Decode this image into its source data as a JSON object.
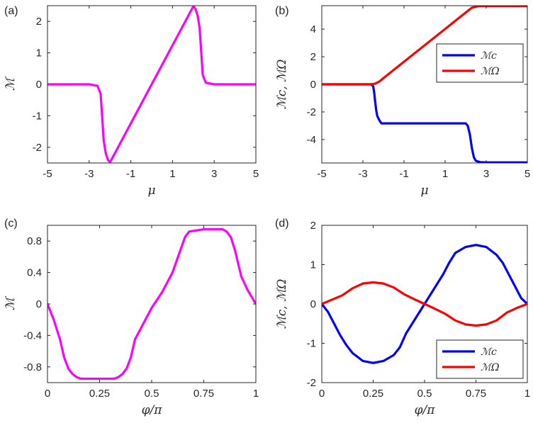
{
  "chart_data": [
    {
      "type": "line",
      "panel_label": "(a)",
      "xlabel": "μ",
      "ylabel": "ℳ",
      "xlim": [
        -5,
        5
      ],
      "ylim": [
        -2.5,
        2.5
      ],
      "xticks": [
        -5,
        -3,
        -1,
        1,
        3,
        5
      ],
      "yticks": [
        -2,
        -1,
        0,
        1,
        2
      ],
      "xtick_labels": [
        "-5",
        "-3",
        "-1",
        "1",
        "3",
        "5"
      ],
      "ytick_labels": [
        "-2",
        "-1",
        "0",
        "1",
        "2"
      ],
      "legend": null,
      "series": [
        {
          "name": "ℳ",
          "color": "#ff00ff",
          "x": [
            -5,
            -3.0,
            -2.6,
            -2.45,
            -2.4,
            -2.35,
            -2.3,
            -2.2,
            -2.1,
            -2.0,
            0.0,
            2.0,
            2.1,
            2.2,
            2.3,
            2.35,
            2.4,
            2.45,
            2.6,
            3.0,
            5
          ],
          "y": [
            0,
            0,
            -0.05,
            -0.3,
            -0.8,
            -1.3,
            -1.8,
            -2.2,
            -2.4,
            -2.48,
            0,
            2.48,
            2.4,
            2.2,
            1.8,
            1.3,
            0.8,
            0.3,
            0.05,
            0,
            0
          ]
        }
      ]
    },
    {
      "type": "line",
      "panel_label": "(b)",
      "xlabel": "μ",
      "ylabel": "ℳc, ℳΩ",
      "xlim": [
        -5,
        5
      ],
      "ylim": [
        -5.7,
        5.7
      ],
      "xticks": [
        -5,
        -3,
        -1,
        1,
        3,
        5
      ],
      "yticks": [
        -4,
        -2,
        0,
        2,
        4
      ],
      "xtick_labels": [
        "-5",
        "-3",
        "-1",
        "1",
        "3",
        "5"
      ],
      "ytick_labels": [
        "-4",
        "-2",
        "0",
        "2",
        "4"
      ],
      "legend": {
        "position": "right",
        "entries": [
          "ℳc",
          "ℳΩ"
        ]
      },
      "series": [
        {
          "name": "ℳc",
          "color": "#0000ff",
          "x": [
            -5,
            -2.6,
            -2.5,
            -2.45,
            -2.4,
            -2.35,
            -2.3,
            -2.2,
            -2.1,
            2.0,
            2.1,
            2.2,
            2.3,
            2.4,
            2.5,
            2.7,
            3.0,
            5
          ],
          "y": [
            0,
            0,
            -0.15,
            -0.6,
            -1.3,
            -1.9,
            -2.3,
            -2.6,
            -2.83,
            -2.83,
            -3.0,
            -3.6,
            -4.6,
            -5.3,
            -5.55,
            -5.64,
            -5.66,
            -5.66
          ]
        },
        {
          "name": "ℳΩ",
          "color": "#ff0000",
          "x": [
            -5,
            -2.6,
            -2.4,
            -2.2,
            -2.0,
            2.0,
            2.3,
            2.6,
            3.0,
            5
          ],
          "y": [
            0,
            0,
            0.05,
            0.2,
            0.45,
            5.2,
            5.55,
            5.66,
            5.66,
            5.66
          ]
        }
      ]
    },
    {
      "type": "line",
      "panel_label": "(c)",
      "xlabel": "φ/π",
      "ylabel": "ℳ",
      "xlim": [
        0,
        1
      ],
      "ylim": [
        -1.0,
        1.0
      ],
      "xticks": [
        0,
        0.25,
        0.5,
        0.75,
        1
      ],
      "yticks": [
        -0.8,
        -0.4,
        0,
        0.4,
        0.8
      ],
      "xtick_labels": [
        "0",
        "0.25",
        "0.5",
        "0.75",
        "1"
      ],
      "ytick_labels": [
        "-0.8",
        "-0.4",
        "0",
        "0.4",
        "0.8"
      ],
      "legend": null,
      "series": [
        {
          "name": "ℳ",
          "color": "#ff00ff",
          "x": [
            0,
            0.03,
            0.06,
            0.08,
            0.1,
            0.12,
            0.14,
            0.16,
            0.18,
            0.25,
            0.32,
            0.34,
            0.36,
            0.38,
            0.4,
            0.42,
            0.5,
            0.55,
            0.6,
            0.62,
            0.64,
            0.66,
            0.68,
            0.75,
            0.82,
            0.84,
            0.86,
            0.88,
            0.9,
            0.93,
            0.96,
            1.0
          ],
          "y": [
            0,
            -0.2,
            -0.45,
            -0.68,
            -0.82,
            -0.89,
            -0.93,
            -0.95,
            -0.95,
            -0.95,
            -0.95,
            -0.93,
            -0.89,
            -0.82,
            -0.68,
            -0.45,
            -0.05,
            0.15,
            0.4,
            0.55,
            0.7,
            0.85,
            0.92,
            0.95,
            0.95,
            0.95,
            0.92,
            0.85,
            0.68,
            0.35,
            0.18,
            0
          ]
        }
      ]
    },
    {
      "type": "line",
      "panel_label": "(d)",
      "xlabel": "φ/π",
      "ylabel": "ℳc, ℳΩ",
      "xlim": [
        0,
        1
      ],
      "ylim": [
        -2,
        2
      ],
      "xticks": [
        0,
        0.25,
        0.5,
        0.75,
        1
      ],
      "yticks": [
        -2,
        -1,
        0,
        1,
        2
      ],
      "xtick_labels": [
        "0",
        "0.25",
        "0.5",
        "0.75",
        "1"
      ],
      "ytick_labels": [
        "-2",
        "-1",
        "0",
        "1",
        "2"
      ],
      "legend": {
        "position": "bottom-right",
        "entries": [
          "ℳc",
          "ℳΩ"
        ]
      },
      "series": [
        {
          "name": "ℳc",
          "color": "#0000ff",
          "x": [
            0,
            0.03,
            0.06,
            0.09,
            0.12,
            0.15,
            0.2,
            0.25,
            0.3,
            0.35,
            0.38,
            0.41,
            0.44,
            0.47,
            0.5,
            0.53,
            0.56,
            0.59,
            0.62,
            0.65,
            0.7,
            0.75,
            0.8,
            0.85,
            0.88,
            0.91,
            0.94,
            0.97,
            1.0
          ],
          "y": [
            0,
            -0.2,
            -0.5,
            -0.8,
            -1.05,
            -1.25,
            -1.45,
            -1.5,
            -1.45,
            -1.3,
            -1.1,
            -0.75,
            -0.5,
            -0.25,
            0,
            0.25,
            0.5,
            0.75,
            1.05,
            1.3,
            1.45,
            1.5,
            1.45,
            1.25,
            1.05,
            0.75,
            0.45,
            0.15,
            0
          ]
        },
        {
          "name": "ℳΩ",
          "color": "#ff0000",
          "x": [
            0,
            0.1,
            0.15,
            0.2,
            0.25,
            0.3,
            0.35,
            0.4,
            0.45,
            0.5,
            0.55,
            0.6,
            0.65,
            0.7,
            0.75,
            0.8,
            0.85,
            0.9,
            0.95,
            1.0
          ],
          "y": [
            0,
            0.22,
            0.4,
            0.52,
            0.55,
            0.52,
            0.42,
            0.25,
            0.12,
            0,
            -0.12,
            -0.25,
            -0.42,
            -0.52,
            -0.55,
            -0.52,
            -0.42,
            -0.22,
            -0.1,
            0
          ]
        }
      ]
    }
  ]
}
